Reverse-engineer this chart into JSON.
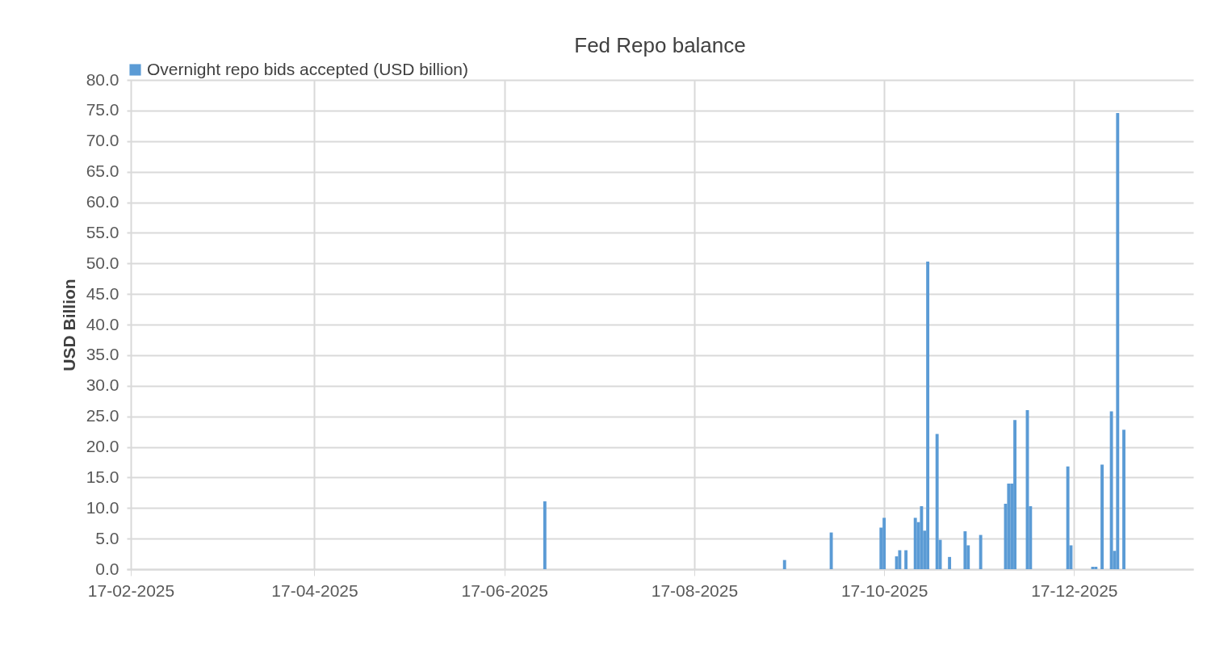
{
  "chart_data": {
    "type": "bar",
    "title": "Fed Repo balance",
    "ylabel": "USD Billion",
    "x": [
      "2025-06-30",
      "2025-09-15",
      "2025-09-30",
      "2025-10-16",
      "2025-10-17",
      "2025-10-21",
      "2025-10-22",
      "2025-10-24",
      "2025-10-27",
      "2025-10-28",
      "2025-10-29",
      "2025-10-30",
      "2025-10-31",
      "2025-11-03",
      "2025-11-04",
      "2025-11-07",
      "2025-11-12",
      "2025-11-13",
      "2025-11-17",
      "2025-11-25",
      "2025-11-26",
      "2025-11-27",
      "2025-11-28",
      "2025-12-02",
      "2025-12-03",
      "2025-12-15",
      "2025-12-16",
      "2025-12-23",
      "2025-12-24",
      "2025-12-26",
      "2025-12-29",
      "2025-12-30",
      "2025-12-31",
      "2026-01-02"
    ],
    "series": [
      {
        "name": "Overnight repo bids accepted (USD billion)",
        "color": "#5b9bd5",
        "values": [
          11.1,
          1.5,
          6.0,
          6.8,
          8.4,
          2.1,
          3.1,
          3.1,
          8.4,
          7.7,
          10.3,
          6.3,
          50.3,
          22.1,
          4.8,
          2.0,
          6.2,
          3.9,
          5.6,
          10.7,
          14.0,
          14.0,
          24.4,
          26.0,
          10.3,
          16.8,
          3.9,
          0.4,
          0.4,
          17.1,
          25.8,
          3.0,
          74.6,
          22.8
        ]
      }
    ],
    "xlim": [
      "2025-02-17",
      "2026-01-23"
    ],
    "xticks": [
      {
        "value": "2025-02-17",
        "label": "17-02-2025"
      },
      {
        "value": "2025-04-17",
        "label": "17-04-2025"
      },
      {
        "value": "2025-06-17",
        "label": "17-06-2025"
      },
      {
        "value": "2025-08-17",
        "label": "17-08-2025"
      },
      {
        "value": "2025-10-17",
        "label": "17-10-2025"
      },
      {
        "value": "2025-12-17",
        "label": "17-12-2025"
      }
    ],
    "ylim": [
      0,
      80
    ],
    "yticks": [
      {
        "value": 0,
        "label": "0.0"
      },
      {
        "value": 5,
        "label": "5.0"
      },
      {
        "value": 10,
        "label": "10.0"
      },
      {
        "value": 15,
        "label": "15.0"
      },
      {
        "value": 20,
        "label": "20.0"
      },
      {
        "value": 25,
        "label": "25.0"
      },
      {
        "value": 30,
        "label": "30.0"
      },
      {
        "value": 35,
        "label": "35.0"
      },
      {
        "value": 40,
        "label": "40.0"
      },
      {
        "value": 45,
        "label": "45.0"
      },
      {
        "value": 50,
        "label": "50.0"
      },
      {
        "value": 55,
        "label": "55.0"
      },
      {
        "value": 60,
        "label": "60.0"
      },
      {
        "value": 65,
        "label": "65.0"
      },
      {
        "value": 70,
        "label": "70.0"
      },
      {
        "value": 75,
        "label": "75.0"
      },
      {
        "value": 80,
        "label": "80.0"
      }
    ],
    "grid": true,
    "legend": "top"
  }
}
